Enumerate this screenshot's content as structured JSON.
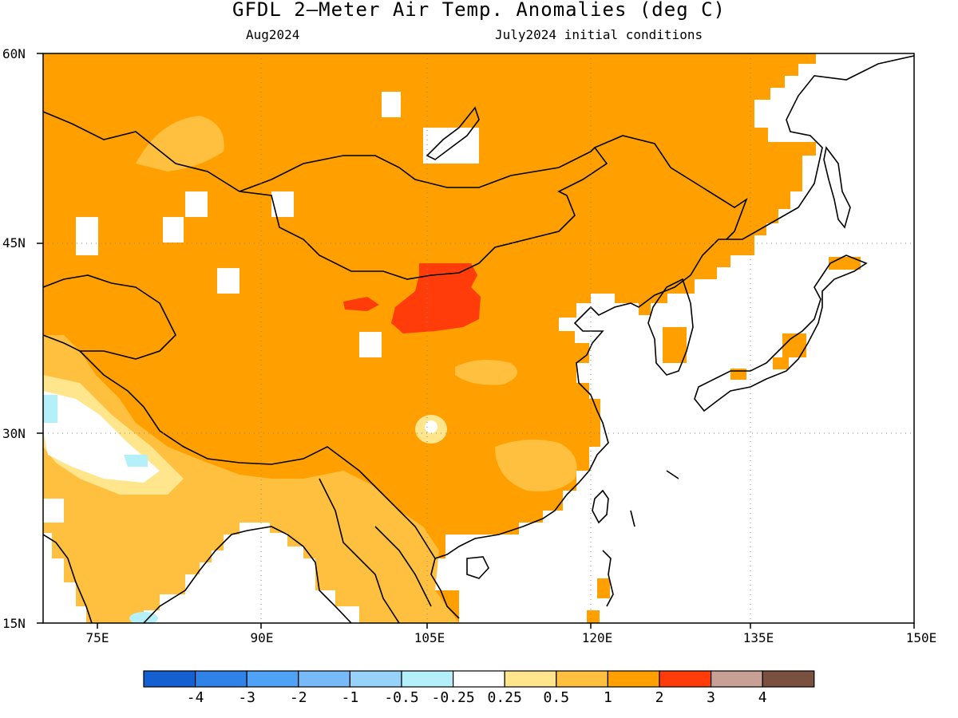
{
  "title": "GFDL 2—Meter Air Temp. Anomalies (deg C)",
  "subtitle_left": "Aug2024",
  "subtitle_right": "July2024 initial conditions",
  "lat_labels": [
    "60N",
    "45N",
    "30N",
    "15N"
  ],
  "lon_labels": [
    "75E",
    "90E",
    "105E",
    "120E",
    "135E",
    "150E"
  ],
  "colorbar": {
    "colors": [
      "#1560d0",
      "#2e82e8",
      "#4fa2f5",
      "#78b9f7",
      "#96d2fa",
      "#b4f0fa",
      "#ffffff",
      "#ffe68c",
      "#ffc040",
      "#ffa000",
      "#ff3c0a",
      "#c8a096",
      "#7a5040"
    ],
    "labels": [
      "-4",
      "-3",
      "-2",
      "-1",
      "-0.5",
      "-0.25",
      "0.25",
      "0.5",
      "1",
      "2",
      "3",
      "4"
    ]
  },
  "map": {
    "extent": {
      "lon": [
        70,
        150
      ],
      "lat": [
        15,
        60
      ]
    },
    "dominant_anomaly_color": "#ffa000",
    "hotspot_color": "#ff3c0a",
    "weak_anomaly_color": "#ffc040",
    "neutral_color": "#ffffff",
    "cool_color": "#b4f0fa"
  }
}
